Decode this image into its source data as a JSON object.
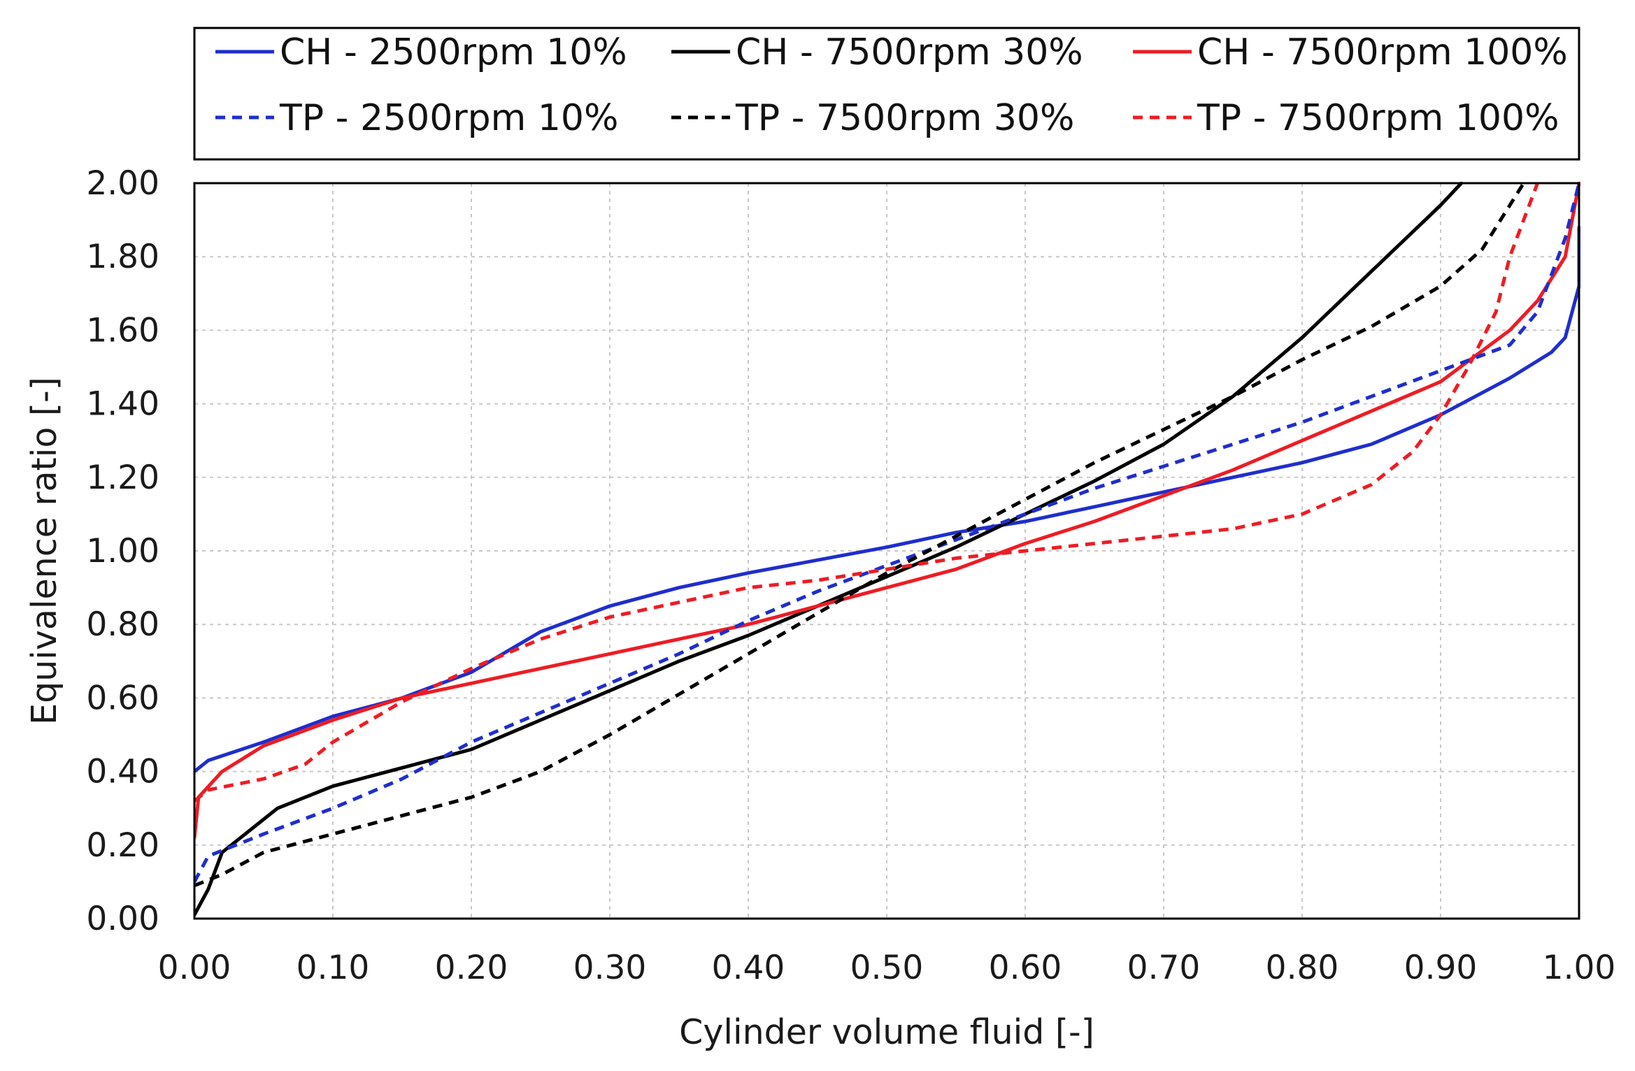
{
  "chart_data": {
    "type": "line",
    "title": "",
    "xlabel": "Cylinder volume fluid [-]",
    "ylabel": "Equivalence ratio [-]",
    "xlim": [
      0,
      1
    ],
    "ylim": [
      0,
      2
    ],
    "xticks": [
      "0.00",
      "0.10",
      "0.20",
      "0.30",
      "0.40",
      "0.50",
      "0.60",
      "0.70",
      "0.80",
      "0.90",
      "1.00"
    ],
    "yticks": [
      "0.00",
      "0.20",
      "0.40",
      "0.60",
      "0.80",
      "1.00",
      "1.20",
      "1.40",
      "1.60",
      "1.80",
      "2.00"
    ],
    "grid": true,
    "legend_position": "top",
    "series": [
      {
        "name": "CH - 2500rpm 10%",
        "color": "#1f2ecc",
        "dash": "solid",
        "points": [
          [
            0.0,
            0.4
          ],
          [
            0.01,
            0.43
          ],
          [
            0.05,
            0.48
          ],
          [
            0.1,
            0.55
          ],
          [
            0.15,
            0.6
          ],
          [
            0.2,
            0.67
          ],
          [
            0.25,
            0.78
          ],
          [
            0.3,
            0.85
          ],
          [
            0.35,
            0.9
          ],
          [
            0.4,
            0.94
          ],
          [
            0.5,
            1.01
          ],
          [
            0.55,
            1.05
          ],
          [
            0.6,
            1.08
          ],
          [
            0.65,
            1.12
          ],
          [
            0.7,
            1.16
          ],
          [
            0.75,
            1.2
          ],
          [
            0.8,
            1.24
          ],
          [
            0.85,
            1.29
          ],
          [
            0.9,
            1.37
          ],
          [
            0.95,
            1.47
          ],
          [
            0.98,
            1.54
          ],
          [
            0.99,
            1.58
          ],
          [
            1.0,
            1.72
          ],
          [
            1.0,
            1.88
          ]
        ]
      },
      {
        "name": "CH - 7500rpm 30%",
        "color": "#000000",
        "dash": "solid",
        "points": [
          [
            0.0,
            0.01
          ],
          [
            0.01,
            0.08
          ],
          [
            0.02,
            0.18
          ],
          [
            0.04,
            0.24
          ],
          [
            0.06,
            0.3
          ],
          [
            0.1,
            0.36
          ],
          [
            0.15,
            0.41
          ],
          [
            0.2,
            0.46
          ],
          [
            0.25,
            0.54
          ],
          [
            0.3,
            0.62
          ],
          [
            0.35,
            0.7
          ],
          [
            0.4,
            0.77
          ],
          [
            0.45,
            0.85
          ],
          [
            0.5,
            0.93
          ],
          [
            0.55,
            1.01
          ],
          [
            0.6,
            1.1
          ],
          [
            0.65,
            1.19
          ],
          [
            0.7,
            1.29
          ],
          [
            0.75,
            1.42
          ],
          [
            0.8,
            1.58
          ],
          [
            0.85,
            1.76
          ],
          [
            0.9,
            1.94
          ],
          [
            0.915,
            2.0
          ]
        ]
      },
      {
        "name": "CH - 7500rpm 100%",
        "color": "#ee1c24",
        "dash": "solid",
        "points": [
          [
            0.0,
            0.22
          ],
          [
            0.003,
            0.33
          ],
          [
            0.02,
            0.4
          ],
          [
            0.05,
            0.47
          ],
          [
            0.1,
            0.54
          ],
          [
            0.15,
            0.6
          ],
          [
            0.2,
            0.64
          ],
          [
            0.25,
            0.68
          ],
          [
            0.3,
            0.72
          ],
          [
            0.35,
            0.76
          ],
          [
            0.4,
            0.8
          ],
          [
            0.45,
            0.85
          ],
          [
            0.5,
            0.9
          ],
          [
            0.55,
            0.95
          ],
          [
            0.6,
            1.02
          ],
          [
            0.65,
            1.08
          ],
          [
            0.7,
            1.15
          ],
          [
            0.75,
            1.22
          ],
          [
            0.8,
            1.3
          ],
          [
            0.85,
            1.38
          ],
          [
            0.9,
            1.46
          ],
          [
            0.95,
            1.6
          ],
          [
            0.97,
            1.68
          ],
          [
            0.99,
            1.8
          ],
          [
            1.0,
            2.0
          ]
        ]
      },
      {
        "name": "TP - 2500rpm 10%",
        "color": "#1f2ecc",
        "dash": "dashed",
        "points": [
          [
            0.0,
            0.1
          ],
          [
            0.01,
            0.17
          ],
          [
            0.05,
            0.23
          ],
          [
            0.1,
            0.3
          ],
          [
            0.15,
            0.38
          ],
          [
            0.2,
            0.48
          ],
          [
            0.25,
            0.56
          ],
          [
            0.3,
            0.64
          ],
          [
            0.35,
            0.72
          ],
          [
            0.4,
            0.81
          ],
          [
            0.45,
            0.89
          ],
          [
            0.5,
            0.96
          ],
          [
            0.55,
            1.03
          ],
          [
            0.6,
            1.1
          ],
          [
            0.65,
            1.17
          ],
          [
            0.7,
            1.23
          ],
          [
            0.75,
            1.29
          ],
          [
            0.8,
            1.35
          ],
          [
            0.85,
            1.42
          ],
          [
            0.9,
            1.49
          ],
          [
            0.95,
            1.56
          ],
          [
            0.97,
            1.65
          ],
          [
            0.99,
            1.85
          ],
          [
            1.0,
            2.0
          ]
        ]
      },
      {
        "name": "TP - 7500rpm 30%",
        "color": "#000000",
        "dash": "dashed",
        "points": [
          [
            0.0,
            0.09
          ],
          [
            0.02,
            0.12
          ],
          [
            0.05,
            0.18
          ],
          [
            0.1,
            0.23
          ],
          [
            0.15,
            0.28
          ],
          [
            0.2,
            0.33
          ],
          [
            0.25,
            0.4
          ],
          [
            0.3,
            0.5
          ],
          [
            0.35,
            0.61
          ],
          [
            0.4,
            0.72
          ],
          [
            0.45,
            0.83
          ],
          [
            0.5,
            0.94
          ],
          [
            0.55,
            1.04
          ],
          [
            0.6,
            1.14
          ],
          [
            0.65,
            1.24
          ],
          [
            0.7,
            1.33
          ],
          [
            0.75,
            1.42
          ],
          [
            0.8,
            1.52
          ],
          [
            0.85,
            1.61
          ],
          [
            0.9,
            1.72
          ],
          [
            0.93,
            1.82
          ],
          [
            0.95,
            1.94
          ],
          [
            0.96,
            2.0
          ]
        ]
      },
      {
        "name": "TP - 7500rpm 100%",
        "color": "#ee1c24",
        "dash": "dashed",
        "points": [
          [
            0.0,
            0.32
          ],
          [
            0.01,
            0.35
          ],
          [
            0.05,
            0.38
          ],
          [
            0.08,
            0.42
          ],
          [
            0.1,
            0.48
          ],
          [
            0.15,
            0.59
          ],
          [
            0.2,
            0.68
          ],
          [
            0.25,
            0.76
          ],
          [
            0.3,
            0.82
          ],
          [
            0.35,
            0.86
          ],
          [
            0.4,
            0.9
          ],
          [
            0.45,
            0.92
          ],
          [
            0.5,
            0.95
          ],
          [
            0.55,
            0.98
          ],
          [
            0.6,
            1.0
          ],
          [
            0.65,
            1.02
          ],
          [
            0.7,
            1.04
          ],
          [
            0.75,
            1.06
          ],
          [
            0.8,
            1.1
          ],
          [
            0.85,
            1.18
          ],
          [
            0.88,
            1.27
          ],
          [
            0.9,
            1.37
          ],
          [
            0.92,
            1.5
          ],
          [
            0.94,
            1.65
          ],
          [
            0.95,
            1.8
          ],
          [
            0.96,
            1.9
          ],
          [
            0.97,
            2.0
          ]
        ]
      }
    ]
  }
}
